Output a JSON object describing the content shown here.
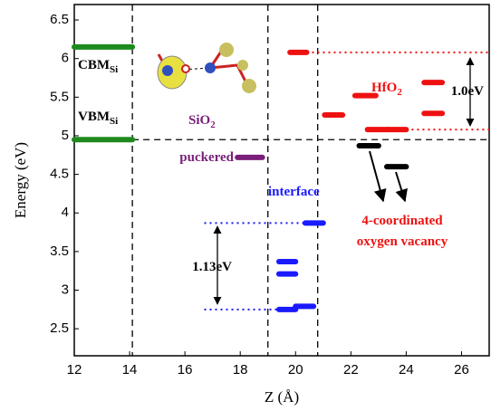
{
  "chart_data": {
    "type": "levels",
    "x_label": "Z (Å)",
    "y_label": "Energy (eV)",
    "xlim": [
      12,
      27
    ],
    "ylim": [
      2.15,
      6.7
    ],
    "xticks": [
      12,
      14,
      16,
      18,
      20,
      22,
      24,
      26
    ],
    "yticks": [
      2.5,
      3.0,
      3.5,
      4.0,
      4.5,
      5.0,
      5.5,
      6.0,
      6.5
    ],
    "boundaries_x": [
      14.1,
      19.0,
      20.8
    ],
    "boundary_y": 4.95,
    "levels": [
      {
        "color": "#1e8a1e",
        "x": [
          12,
          14.1
        ],
        "y": 6.15
      },
      {
        "color": "#1e8a1e",
        "x": [
          12,
          14.1
        ],
        "y": 4.95
      },
      {
        "color": "#7a1f7a",
        "x": [
          17.9,
          18.8
        ],
        "y": 4.72
      },
      {
        "color": "#1a1aff",
        "x": [
          20.35,
          21.0
        ],
        "y": 3.87
      },
      {
        "color": "#1a1aff",
        "x": [
          19.4,
          20.0
        ],
        "y": 3.37
      },
      {
        "color": "#1a1aff",
        "x": [
          19.4,
          20.0
        ],
        "y": 3.21
      },
      {
        "color": "#1a1aff",
        "x": [
          19.4,
          20.0
        ],
        "y": 2.75
      },
      {
        "color": "#1a1aff",
        "x": [
          20.0,
          20.65
        ],
        "y": 2.79
      },
      {
        "color": "#ee1111",
        "x": [
          19.8,
          20.4
        ],
        "y": 6.08
      },
      {
        "color": "#ee1111",
        "x": [
          21.05,
          21.7
        ],
        "y": 5.27
      },
      {
        "color": "#ee1111",
        "x": [
          22.15,
          22.9
        ],
        "y": 5.52
      },
      {
        "color": "#ee1111",
        "x": [
          22.6,
          23.35
        ],
        "y": 5.08
      },
      {
        "color": "#ee1111",
        "x": [
          23.35,
          24.0
        ],
        "y": 5.08
      },
      {
        "color": "#ee1111",
        "x": [
          24.65,
          25.3
        ],
        "y": 5.69
      },
      {
        "color": "#ee1111",
        "x": [
          24.65,
          25.3
        ],
        "y": 5.29
      },
      {
        "color": "#000000",
        "x": [
          22.3,
          23.0
        ],
        "y": 4.87
      },
      {
        "color": "#000000",
        "x": [
          23.3,
          24.0
        ],
        "y": 4.6
      }
    ],
    "dotted": [
      {
        "color": "#ee1111",
        "x": [
          20.4,
          27
        ],
        "y": 6.08
      },
      {
        "color": "#ee1111",
        "x": [
          24.0,
          27
        ],
        "y": 5.08
      },
      {
        "color": "#1a1aff",
        "x": [
          16.7,
          20.35
        ],
        "y": 3.87
      },
      {
        "color": "#1a1aff",
        "x": [
          16.7,
          19.4
        ],
        "y": 2.75
      }
    ],
    "annotations": [
      {
        "text": "CBM",
        "sub": "Si",
        "color": "#000000"
      },
      {
        "text": "VBM",
        "sub": "Si",
        "color": "#000000"
      },
      {
        "text": "SiO",
        "sub": "2",
        "color": "#7a1f7a"
      },
      {
        "text": "puckered",
        "color": "#7a1f7a"
      },
      {
        "text": "interface",
        "color": "#1a1aff"
      },
      {
        "text": "HfO",
        "sub": "2",
        "color": "#ee1111"
      },
      {
        "text": "1.0eV",
        "color": "#000000"
      },
      {
        "text": "1.13eV",
        "color": "#000000"
      },
      {
        "text": "4-coordinated",
        "color": "#ee1111"
      },
      {
        "text": "oxygen vacancy",
        "color": "#ee1111"
      }
    ]
  }
}
